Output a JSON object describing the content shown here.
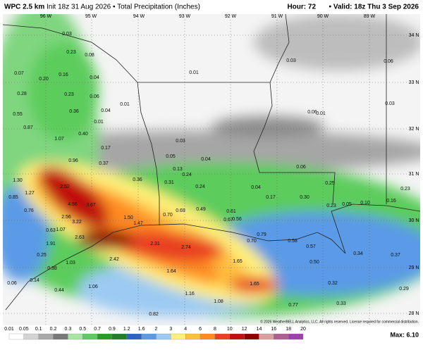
{
  "header": {
    "model": "WPC 2.5 km",
    "init": "Init 18z 31 Aug 2026 • Total Precipitation (Inches)",
    "hour": "Hour: 72",
    "valid": "• Valid: 18z Thu 3 Sep 2026"
  },
  "longitudes": [
    "96 W",
    "95 W",
    "94 W",
    "93 W",
    "92 W",
    "91 W",
    "90 W",
    "89 W"
  ],
  "latitudes": [
    "34 N",
    "33 N",
    "32 N",
    "31 N",
    "30 N",
    "29 N",
    "28 N"
  ],
  "point_labels": [
    "0.03",
    "0.23",
    "0.08",
    "0.07",
    "0.20",
    "0.16",
    "0.04",
    "0.28",
    "0.23",
    "0.06",
    "0.01",
    "0.55",
    "0.36",
    "0.04",
    "0.01",
    "0.87",
    "0.40",
    "1.07",
    "0.17",
    "0.96",
    "0.37",
    "0.05",
    "0.03",
    "0.13",
    "0.24",
    "0.04",
    "1.30",
    "2.52",
    "0.36",
    "0.31",
    "0.24",
    "1.27",
    "0.85",
    "4.56",
    "3.67",
    "0.76",
    "2.56",
    "3.22",
    "1.50",
    "1.47",
    "0.70",
    "0.69",
    "0.49",
    "0.61",
    "0.67",
    "0.56",
    "1.07",
    "0.63",
    "2.63",
    "1.91",
    "2.31",
    "2.74",
    "0.79",
    "0.70",
    "0.58",
    "0.57",
    "0.25",
    "2.42",
    "1.03",
    "0.38",
    "1.64",
    "1.65",
    "0.50",
    "0.34",
    "0.37",
    "0.14",
    "0.06",
    "1.06",
    "0.44",
    "1.65",
    "0.32",
    "0.29",
    "1.16",
    "1.08",
    "0.77",
    "0.33",
    "0.82",
    "0.01",
    "0.03",
    "0.06",
    "0.03",
    "0.06",
    "0.01",
    "0.06",
    "0.04",
    "0.17",
    "0.30",
    "0.25",
    "0.23",
    "0.23",
    "0.05",
    "0.10",
    "0.16"
  ],
  "credit": "© 2026 WeatherBELL Analytics, LLC. All rights reserved. License required for commercial distribution.",
  "colorbar": {
    "labels": [
      "0.01",
      "0.05",
      "0.1",
      "0.2",
      "0.3",
      "0.5",
      "0.7",
      "0.9",
      "1.2",
      "1.6",
      "2",
      "3",
      "4",
      "6",
      "8",
      "10",
      "12",
      "14",
      "16",
      "18",
      "20"
    ],
    "colors": [
      "#ffffff",
      "#d4d4d4",
      "#a8a8a8",
      "#787878",
      "#a6e6a0",
      "#5ccc5c",
      "#22a022",
      "#1e7e2a",
      "#2a64c8",
      "#5a9ae6",
      "#9ccaf2",
      "#fff07a",
      "#ffc040",
      "#ff8a20",
      "#e84020",
      "#c01010",
      "#8a0000",
      "#d8a0a0",
      "#b06090",
      "#a040b0"
    ]
  },
  "max": "Max: 6.10"
}
